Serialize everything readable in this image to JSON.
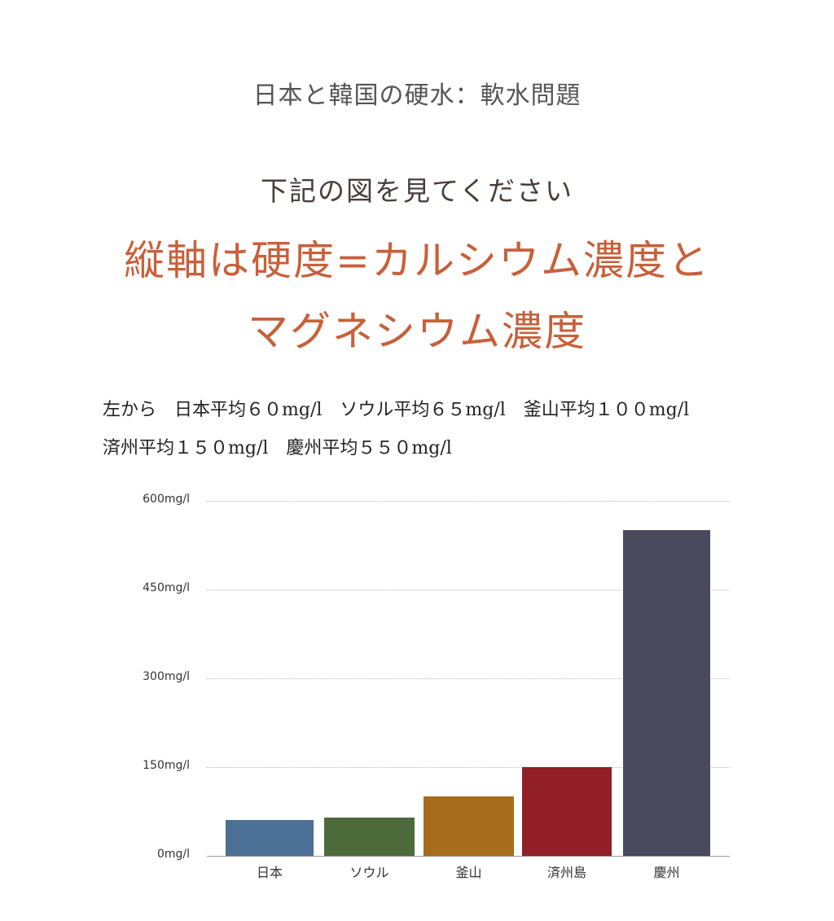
{
  "header": {
    "subtitle": "日本と韓国の硬水：軟水問題",
    "lead": "下記の図を見てください",
    "headline_line1": "縦軸は硬度=カルシウム濃度と",
    "headline_line2": "マグネシウム濃度"
  },
  "description": {
    "line1": "左から　日本平均６０mg/l　ソウル平均６５mg/l　釜山平均１００mg/l",
    "line2": "済州平均１５０mg/l　慶州平均５５０mg/l"
  },
  "colors": {
    "headline": "#c8603a",
    "bars": [
      "#4b6f95",
      "#4d6a3b",
      "#a66e1c",
      "#922026",
      "#4a4a5e"
    ]
  },
  "chart_data": {
    "type": "bar",
    "title": "",
    "xlabel": "",
    "ylabel": "",
    "categories": [
      "日本",
      "ソウル",
      "釜山",
      "済州島",
      "慶州"
    ],
    "values": [
      60,
      65,
      100,
      150,
      550
    ],
    "unit": "mg/l",
    "ylim": [
      0,
      600
    ],
    "yticks": [
      0,
      150,
      300,
      450,
      600
    ],
    "ytick_labels": [
      "0mg/l",
      "150mg/l",
      "300mg/l",
      "450mg/l",
      "600mg/l"
    ],
    "grid": true,
    "grid_style": "dotted horizontal",
    "legend": null
  }
}
